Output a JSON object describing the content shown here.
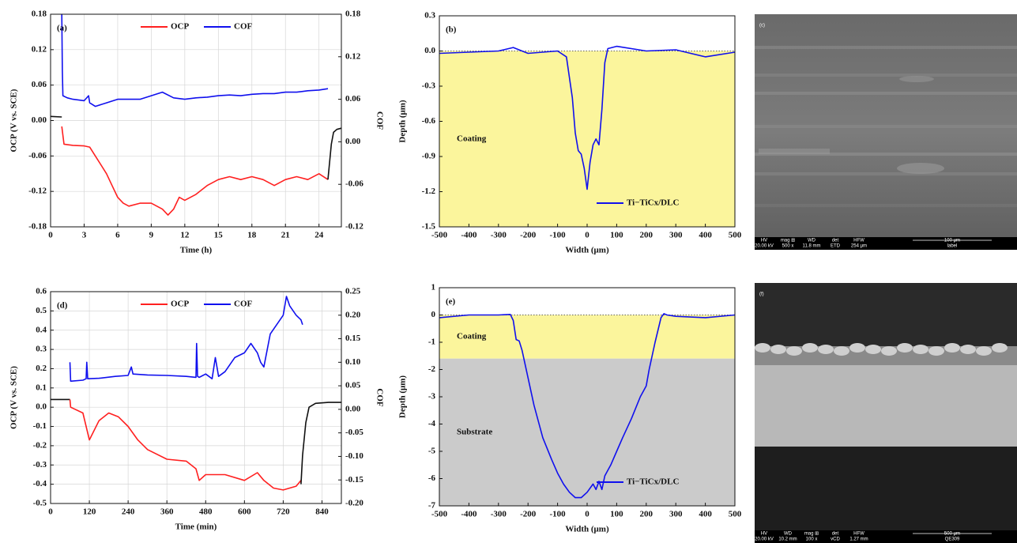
{
  "chart_data": [
    {
      "type": "line",
      "panel_label": "(a)",
      "xlabel": "Time (h)",
      "ylabel": "OCP (V vs. SCE)",
      "y2label": "COF",
      "xlim": [
        0,
        26
      ],
      "xticks": [
        0,
        3,
        6,
        9,
        12,
        15,
        18,
        21,
        24
      ],
      "ylim": [
        -0.18,
        0.18
      ],
      "yticks": [
        -0.18,
        -0.12,
        -0.06,
        {
          "value": 0,
          "label": "0.00"
        },
        0.06,
        0.12,
        0.18
      ],
      "y2lim": [
        -0.12,
        0.18
      ],
      "y2ticks": [
        -0.12,
        -0.06,
        {
          "value": 0,
          "label": "0.00"
        },
        0.06,
        0.12,
        0.18
      ],
      "grid": true,
      "legend": "top",
      "series": [
        {
          "color": "#111111",
          "x": [
            0,
            1
          ],
          "values": [
            0.007,
            0.006
          ]
        },
        {
          "name": "OCP",
          "color": "#ff2020",
          "x": [
            1,
            1.2,
            2,
            3,
            3.5,
            4,
            4.5,
            5,
            5.5,
            6,
            6.5,
            7,
            8,
            9,
            10,
            10.5,
            11,
            11.5,
            12,
            13,
            14,
            15,
            16,
            17,
            18,
            19,
            20,
            21,
            22,
            23,
            24,
            24.8
          ],
          "values": [
            -0.01,
            -0.04,
            -0.042,
            -0.043,
            -0.045,
            -0.06,
            -0.075,
            -0.09,
            -0.11,
            -0.13,
            -0.14,
            -0.145,
            -0.14,
            -0.14,
            -0.15,
            -0.16,
            -0.15,
            -0.13,
            -0.135,
            -0.125,
            -0.11,
            -0.1,
            -0.095,
            -0.1,
            -0.095,
            -0.1,
            -0.11,
            -0.1,
            -0.095,
            -0.1,
            -0.09,
            -0.1
          ]
        },
        {
          "color": "#111111",
          "x": [
            24.8,
            25.1,
            25.3,
            25.6,
            26
          ],
          "values": [
            -0.1,
            -0.04,
            -0.02,
            -0.015,
            -0.013
          ]
        },
        {
          "name": "COF",
          "color": "#1010ee",
          "axis": "y2",
          "x": [
            1,
            1.05,
            1.1,
            1.5,
            2,
            3,
            3.4,
            3.5,
            4,
            5,
            6,
            7,
            8,
            9,
            10,
            11,
            12,
            13,
            14,
            15,
            16,
            17,
            18,
            19,
            20,
            21,
            22,
            23,
            24,
            24.8
          ],
          "values": [
            0.18,
            0.1,
            0.065,
            0.062,
            0.06,
            0.058,
            0.065,
            0.055,
            0.05,
            0.055,
            0.06,
            0.06,
            0.06,
            0.065,
            0.07,
            0.062,
            0.06,
            0.062,
            0.063,
            0.065,
            0.066,
            0.065,
            0.067,
            0.068,
            0.068,
            0.07,
            0.07,
            0.072,
            0.073,
            0.075
          ]
        }
      ]
    },
    {
      "type": "profile",
      "panel_label": "(b)",
      "xlabel": "Width (μm)",
      "ylabel": "Depth (μm)",
      "xlim": [
        -500,
        500
      ],
      "xticks": [
        -500,
        -400,
        -300,
        -200,
        -100,
        0,
        100,
        200,
        300,
        400,
        500
      ],
      "ylim": [
        -1.5,
        0.3
      ],
      "yticks": [
        -1.5,
        -1.2,
        -0.9,
        -0.6,
        -0.3,
        {
          "value": 0,
          "label": "0.0"
        },
        0.3
      ],
      "legend": "lower right",
      "regions": [
        {
          "label": "Coating",
          "from": 0,
          "to": -1.5,
          "color": "#fbf59c"
        }
      ],
      "series": [
        {
          "name": "Ti−TiCx/DLC",
          "color": "#1010ee",
          "x": [
            -500,
            -400,
            -300,
            -250,
            -200,
            -100,
            -70,
            -50,
            -40,
            -30,
            -20,
            -10,
            0,
            10,
            20,
            30,
            40,
            50,
            60,
            70,
            100,
            200,
            300,
            400,
            500
          ],
          "values": [
            -0.02,
            -0.01,
            0,
            0.03,
            -0.02,
            0,
            -0.05,
            -0.4,
            -0.7,
            -0.85,
            -0.88,
            -1.0,
            -1.18,
            -0.95,
            -0.8,
            -0.75,
            -0.8,
            -0.5,
            -0.1,
            0.02,
            0.04,
            0.0,
            0.01,
            -0.05,
            -0.01
          ]
        }
      ]
    },
    {
      "type": "line",
      "panel_label": "(d)",
      "xlabel": "Time (min)",
      "ylabel": "OCP (V vs. SCE)",
      "y2label": "COF",
      "xlim": [
        0,
        900
      ],
      "xticks": [
        0,
        120,
        240,
        360,
        480,
        600,
        720,
        840
      ],
      "ylim": [
        -0.5,
        0.6
      ],
      "yticks": [
        -0.5,
        -0.4,
        -0.3,
        -0.2,
        -0.1,
        {
          "value": 0,
          "label": "0.0"
        },
        0.1,
        0.2,
        0.3,
        0.4,
        0.5,
        0.6
      ],
      "y2lim": [
        -0.2,
        0.25
      ],
      "y2ticks": [
        {
          "value": -0.2,
          "label": "-0.20"
        },
        -0.15,
        {
          "value": -0.1,
          "label": "-0.10"
        },
        -0.05,
        {
          "value": 0,
          "label": "0.00"
        },
        0.05,
        {
          "value": 0.1,
          "label": "0.10"
        },
        0.15,
        {
          "value": 0.2,
          "label": "0.20"
        },
        0.25
      ],
      "grid": true,
      "legend": "top",
      "series": [
        {
          "color": "#111111",
          "x": [
            0,
            60
          ],
          "values": [
            0.04,
            0.04
          ]
        },
        {
          "name": "OCP",
          "color": "#ff2020",
          "x": [
            60,
            62,
            100,
            110,
            120,
            150,
            180,
            210,
            240,
            270,
            300,
            360,
            420,
            450,
            460,
            480,
            540,
            600,
            640,
            660,
            690,
            720,
            760,
            775
          ],
          "values": [
            0.04,
            0.0,
            -0.03,
            -0.1,
            -0.17,
            -0.07,
            -0.03,
            -0.05,
            -0.1,
            -0.17,
            -0.22,
            -0.27,
            -0.28,
            -0.32,
            -0.38,
            -0.35,
            -0.35,
            -0.38,
            -0.34,
            -0.38,
            -0.42,
            -0.43,
            -0.41,
            -0.38
          ]
        },
        {
          "color": "#111111",
          "x": [
            775,
            780,
            790,
            800,
            820,
            860,
            900
          ],
          "values": [
            -0.4,
            -0.25,
            -0.08,
            0.0,
            0.02,
            0.025,
            0.025
          ]
        },
        {
          "name": "COF",
          "color": "#1010ee",
          "axis": "y2",
          "x": [
            60,
            62,
            65,
            100,
            110,
            112,
            115,
            150,
            200,
            240,
            250,
            255,
            300,
            360,
            420,
            450,
            452,
            455,
            460,
            480,
            500,
            510,
            520,
            540,
            560,
            570,
            600,
            620,
            640,
            650,
            660,
            680,
            700,
            720,
            730,
            740,
            760,
            775,
            780
          ],
          "values": [
            0.1,
            0.06,
            0.06,
            0.062,
            0.065,
            0.1,
            0.065,
            0.066,
            0.07,
            0.072,
            0.09,
            0.075,
            0.073,
            0.072,
            0.07,
            0.068,
            0.14,
            0.07,
            0.068,
            0.075,
            0.065,
            0.11,
            0.07,
            0.08,
            0.1,
            0.11,
            0.12,
            0.14,
            0.12,
            0.1,
            0.09,
            0.16,
            0.18,
            0.2,
            0.24,
            0.22,
            0.2,
            0.19,
            0.18
          ]
        }
      ]
    },
    {
      "type": "profile",
      "panel_label": "(e)",
      "xlabel": "Width (μm)",
      "ylabel": "Depth (μm)",
      "xlim": [
        -500,
        500
      ],
      "xticks": [
        -500,
        -400,
        -300,
        -200,
        -100,
        0,
        100,
        200,
        300,
        400,
        500
      ],
      "ylim": [
        -7,
        1
      ],
      "yticks": [
        -7,
        -6,
        -5,
        -4,
        -3,
        -2,
        -1,
        0,
        1
      ],
      "legend": "lower right",
      "regions": [
        {
          "label": "Coating",
          "from": 0,
          "to": -1.6,
          "color": "#fbf59c"
        },
        {
          "label": "Substrate",
          "from": -1.6,
          "to": -7,
          "color": "#cbcbcb"
        }
      ],
      "series": [
        {
          "name": "Ti−TiCx/DLC",
          "color": "#1010ee",
          "x": [
            -500,
            -400,
            -300,
            -260,
            -250,
            -240,
            -230,
            -220,
            -200,
            -180,
            -150,
            -120,
            -100,
            -80,
            -60,
            -40,
            -20,
            0,
            20,
            30,
            40,
            50,
            60,
            80,
            100,
            120,
            150,
            180,
            200,
            210,
            230,
            250,
            260,
            270,
            300,
            400,
            500
          ],
          "values": [
            -0.1,
            0,
            0,
            0.02,
            -0.2,
            -0.9,
            -0.95,
            -1.3,
            -2.3,
            -3.3,
            -4.5,
            -5.3,
            -5.8,
            -6.2,
            -6.5,
            -6.7,
            -6.7,
            -6.5,
            -6.2,
            -6.4,
            -6.1,
            -6.4,
            -5.9,
            -5.5,
            -5,
            -4.5,
            -3.8,
            -3,
            -2.6,
            -2,
            -1,
            -0.1,
            0.05,
            0,
            -0.05,
            -0.1,
            0
          ]
        }
      ]
    }
  ],
  "images": [
    {
      "label": "(c)",
      "info_bar": [
        "HV",
        "mag ⊞",
        "WD",
        "det",
        "HFW",
        "20.00 kV",
        "500 x",
        "11.8 mm",
        "ETD",
        "254 μm",
        "100 μm",
        "label"
      ]
    },
    {
      "label": "(f)",
      "info_bar": [
        "HV",
        "WD",
        "mag ⊞",
        "det",
        "HFW",
        "20.00 kV",
        "10.2 mm",
        "100 x",
        "vCD",
        "1.27 mm",
        "500 μm",
        "QE309"
      ]
    }
  ]
}
